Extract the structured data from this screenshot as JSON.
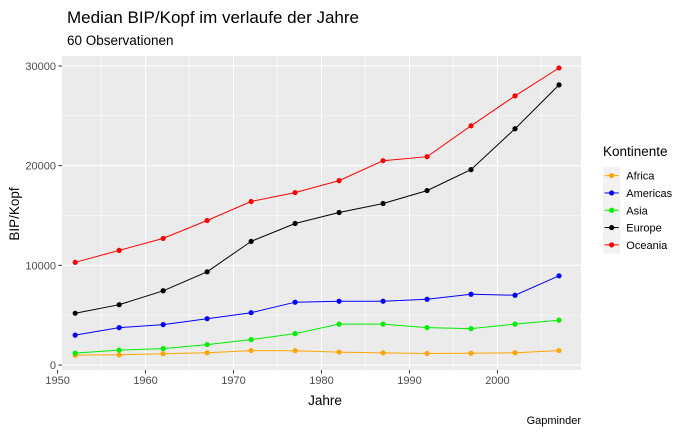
{
  "chart_data": {
    "type": "line",
    "title": "Median BIP/Kopf im verlaufe der Jahre",
    "subtitle": "60 Observationen",
    "xlabel": "Jahre",
    "ylabel": "BIP/Kopf",
    "caption": "Gapminder",
    "xlim": [
      1950.5,
      2009.5
    ],
    "ylim": [
      -500,
      31000
    ],
    "x_ticks": [
      1950,
      1960,
      1970,
      1980,
      1990,
      2000
    ],
    "y_ticks": [
      0,
      10000,
      20000,
      30000
    ],
    "grid": true,
    "legend": {
      "title": "Kontinente",
      "position": "right"
    },
    "x": [
      1952,
      1957,
      1962,
      1967,
      1972,
      1977,
      1982,
      1987,
      1992,
      1997,
      2002,
      2007
    ],
    "series": [
      {
        "name": "Africa",
        "color": "#FFA500",
        "values": [
          990,
          1020,
          1130,
          1230,
          1450,
          1440,
          1300,
          1220,
          1160,
          1180,
          1230,
          1450
        ]
      },
      {
        "name": "Americas",
        "color": "#0000FF",
        "values": [
          3000,
          3750,
          4050,
          4650,
          5250,
          6300,
          6400,
          6400,
          6600,
          7100,
          7000,
          8950
        ]
      },
      {
        "name": "Asia",
        "color": "#00EE00",
        "values": [
          1200,
          1500,
          1650,
          2050,
          2550,
          3150,
          4100,
          4100,
          3750,
          3650,
          4100,
          4500
        ]
      },
      {
        "name": "Europe",
        "color": "#000000",
        "values": [
          5200,
          6050,
          7450,
          9350,
          12400,
          14200,
          15300,
          16200,
          17500,
          19600,
          23700,
          28100
        ]
      },
      {
        "name": "Oceania",
        "color": "#FF0000",
        "values": [
          10300,
          11500,
          12700,
          14500,
          16400,
          17300,
          18500,
          20500,
          20900,
          24000,
          27000,
          29800
        ]
      }
    ]
  }
}
